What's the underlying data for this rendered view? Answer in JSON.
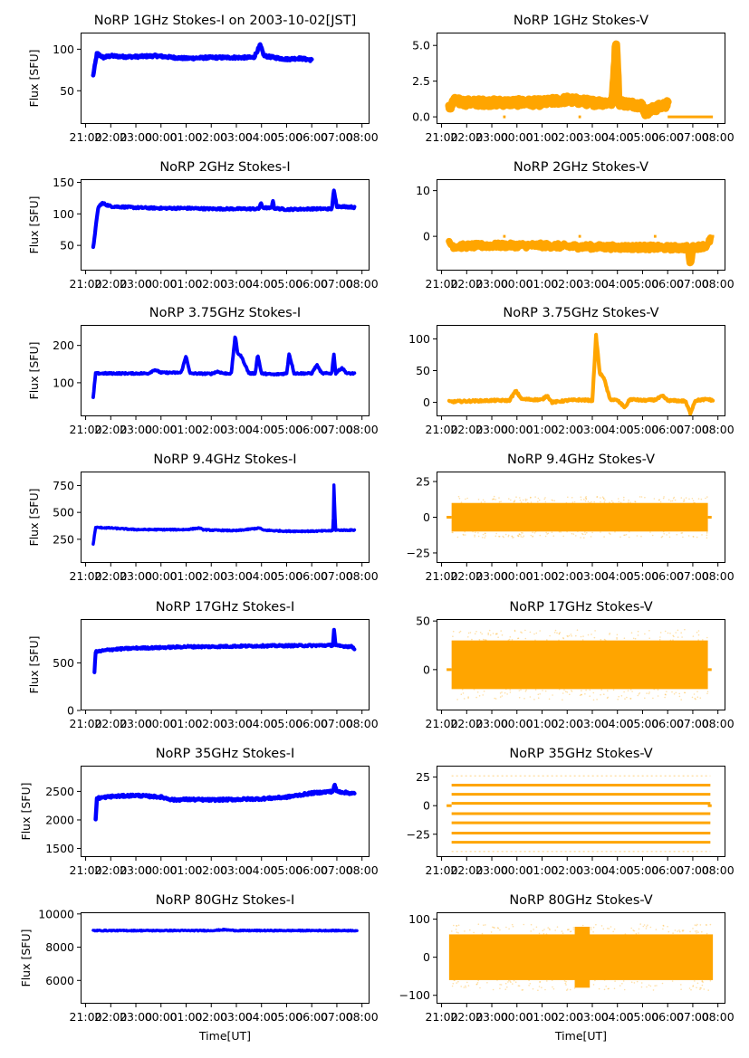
{
  "chart_data": {
    "type": "scatter",
    "figure_layout": "7 rows x 2 columns grid of time-series panels",
    "x_axis": {
      "label": "Time[UT]",
      "tick_labels": [
        "21:00",
        "22:00",
        "23:00",
        "00:00",
        "01:00",
        "02:00",
        "03:00",
        "04:00",
        "05:00",
        "06:00",
        "07:00",
        "08:00"
      ],
      "range_hours": [
        -3.2,
        8.3
      ],
      "data_span_hours": [
        -2.7,
        7.8
      ]
    },
    "colors": {
      "stokes_i": "#0000ff",
      "stokes_v": "#ffa500"
    },
    "panels": [
      {
        "id": "1ghz-i",
        "title": "NoRP 1GHz Stokes-I on 2003-10-02[JST]",
        "ylabel": "Flux [SFU]",
        "ylim": [
          10,
          120
        ],
        "yticks": [
          50,
          100
        ],
        "ytick_labels": [
          "50",
          "100"
        ],
        "color": "stokes_i",
        "series": [
          [
            -2.7,
            68
          ],
          [
            -2.55,
            95
          ],
          [
            -2.3,
            90
          ],
          [
            -2.0,
            92
          ],
          [
            -1.5,
            91
          ],
          [
            -1.0,
            91
          ],
          [
            -0.2,
            92
          ],
          [
            0.5,
            90
          ],
          [
            1.0,
            89
          ],
          [
            2.0,
            90
          ],
          [
            3.0,
            90
          ],
          [
            3.7,
            90
          ],
          [
            3.95,
            105
          ],
          [
            4.1,
            92
          ],
          [
            4.5,
            90
          ],
          [
            5.0,
            88
          ],
          [
            5.5,
            89
          ],
          [
            6.0,
            87
          ]
        ],
        "band": 3
      },
      {
        "id": "1ghz-v",
        "title": "NoRP 1GHz Stokes-V",
        "ylabel": "",
        "ylim": [
          -0.5,
          5.9
        ],
        "yticks": [
          0,
          2.5,
          5
        ],
        "ytick_labels": [
          "0.0",
          "2.5",
          "5.0"
        ],
        "color": "stokes_v",
        "series": [
          [
            -2.7,
            0.6
          ],
          [
            -2.5,
            1.1
          ],
          [
            -2.0,
            1.0
          ],
          [
            -1.0,
            1.0
          ],
          [
            0,
            1.0
          ],
          [
            1.0,
            1.0
          ],
          [
            2.0,
            1.2
          ],
          [
            3.0,
            1.0
          ],
          [
            3.8,
            1.0
          ],
          [
            3.95,
            5.3
          ],
          [
            4.05,
            1.0
          ],
          [
            4.5,
            0.9
          ],
          [
            5.0,
            0.8
          ],
          [
            5.1,
            0.3
          ],
          [
            5.5,
            0.6
          ],
          [
            6.0,
            0.9
          ]
        ],
        "band": 0.5,
        "flat_segments": [
          [
            6.0,
            7.8,
            0
          ],
          [
            -0.55,
            -0.45,
            0
          ],
          [
            2.45,
            2.55,
            0
          ]
        ]
      },
      {
        "id": "2ghz-i",
        "title": "NoRP 2GHz Stokes-I",
        "ylabel": "Flux [SFU]",
        "ylim": [
          10,
          155
        ],
        "yticks": [
          50,
          100,
          150
        ],
        "ytick_labels": [
          "50",
          "100",
          "150"
        ],
        "color": "stokes_i",
        "series": [
          [
            -2.7,
            46
          ],
          [
            -2.5,
            110
          ],
          [
            -2.35,
            117
          ],
          [
            -2.0,
            112
          ],
          [
            -1.0,
            110
          ],
          [
            0,
            109
          ],
          [
            1.0,
            109
          ],
          [
            2.0,
            108
          ],
          [
            3.0,
            108
          ],
          [
            3.9,
            108
          ],
          [
            3.97,
            117
          ],
          [
            4.05,
            110
          ],
          [
            4.4,
            109
          ],
          [
            4.45,
            123
          ],
          [
            4.5,
            109
          ],
          [
            5.0,
            107
          ],
          [
            6.0,
            108
          ],
          [
            6.8,
            108
          ],
          [
            6.88,
            137
          ],
          [
            7.0,
            112
          ],
          [
            7.6,
            111
          ],
          [
            7.7,
            110
          ]
        ],
        "band": 3
      },
      {
        "id": "2ghz-v",
        "title": "NoRP 2GHz Stokes-V",
        "ylabel": "",
        "ylim": [
          -7.5,
          12.5
        ],
        "yticks": [
          0,
          10
        ],
        "ytick_labels": [
          "0",
          "10"
        ],
        "color": "stokes_v",
        "series": [
          [
            -2.7,
            -1.5
          ],
          [
            -2.5,
            -2.2
          ],
          [
            -1.0,
            -2.0
          ],
          [
            0,
            -2.0
          ],
          [
            1.0,
            -2.0
          ],
          [
            2.0,
            -2.2
          ],
          [
            3.0,
            -2.3
          ],
          [
            4.0,
            -2.4
          ],
          [
            5.0,
            -2.4
          ],
          [
            6.0,
            -2.5
          ],
          [
            6.8,
            -2.5
          ],
          [
            6.9,
            -6.5
          ],
          [
            7.0,
            -2.5
          ],
          [
            7.6,
            -2.0
          ],
          [
            7.7,
            -0.5
          ]
        ],
        "band": 1.2,
        "flat_segments": [
          [
            7.7,
            7.85,
            0
          ],
          [
            -0.55,
            -0.45,
            0
          ],
          [
            2.45,
            2.55,
            0
          ],
          [
            5.45,
            5.55,
            0
          ]
        ]
      },
      {
        "id": "3.75ghz-i",
        "title": "NoRP 3.75GHz Stokes-I",
        "ylabel": "Flux [SFU]",
        "ylim": [
          10,
          255
        ],
        "yticks": [
          100,
          200
        ],
        "ytick_labels": [
          "100",
          "200"
        ],
        "color": "stokes_i",
        "series": [
          [
            -2.7,
            60
          ],
          [
            -2.6,
            125
          ],
          [
            -1.0,
            125
          ],
          [
            -0.5,
            125
          ],
          [
            -0.25,
            135
          ],
          [
            0,
            127
          ],
          [
            0.8,
            127
          ],
          [
            1.0,
            172
          ],
          [
            1.15,
            125
          ],
          [
            2.0,
            124
          ],
          [
            2.25,
            130
          ],
          [
            2.5,
            125
          ],
          [
            2.8,
            125
          ],
          [
            2.95,
            225
          ],
          [
            3.05,
            180
          ],
          [
            3.2,
            170
          ],
          [
            3.5,
            125
          ],
          [
            3.75,
            125
          ],
          [
            3.85,
            175
          ],
          [
            4.0,
            125
          ],
          [
            4.5,
            122
          ],
          [
            5.0,
            125
          ],
          [
            5.1,
            178
          ],
          [
            5.3,
            125
          ],
          [
            6.0,
            125
          ],
          [
            6.2,
            148
          ],
          [
            6.4,
            125
          ],
          [
            6.8,
            125
          ],
          [
            6.88,
            180
          ],
          [
            6.95,
            125
          ],
          [
            7.2,
            140
          ],
          [
            7.4,
            125
          ],
          [
            7.7,
            125
          ]
        ],
        "band": 4
      },
      {
        "id": "3.75ghz-v",
        "title": "NoRP 3.75GHz Stokes-V",
        "ylabel": "",
        "ylim": [
          -22,
          122
        ],
        "yticks": [
          0,
          50,
          100
        ],
        "ytick_labels": [
          "0",
          "50",
          "100"
        ],
        "color": "stokes_v",
        "series": [
          [
            -2.7,
            1
          ],
          [
            -1.0,
            3
          ],
          [
            -0.3,
            3
          ],
          [
            -0.05,
            18
          ],
          [
            0.2,
            5
          ],
          [
            1.0,
            4
          ],
          [
            1.2,
            11
          ],
          [
            1.4,
            0
          ],
          [
            2.0,
            3
          ],
          [
            2.5,
            4
          ],
          [
            3.0,
            3
          ],
          [
            3.15,
            105
          ],
          [
            3.3,
            45
          ],
          [
            3.45,
            40
          ],
          [
            3.7,
            5
          ],
          [
            4.0,
            3
          ],
          [
            4.3,
            -8
          ],
          [
            4.5,
            5
          ],
          [
            5.0,
            3
          ],
          [
            5.5,
            4
          ],
          [
            5.8,
            10
          ],
          [
            6.0,
            3
          ],
          [
            6.7,
            2
          ],
          [
            6.9,
            -17
          ],
          [
            7.1,
            3
          ],
          [
            7.6,
            5
          ],
          [
            7.8,
            3
          ]
        ],
        "band": 3
      },
      {
        "id": "9.4ghz-i",
        "title": "NoRP 9.4GHz Stokes-I",
        "ylabel": "Flux [SFU]",
        "ylim": [
          30,
          880
        ],
        "yticks": [
          250,
          500,
          750
        ],
        "ytick_labels": [
          "250",
          "500",
          "750"
        ],
        "color": "stokes_i",
        "series": [
          [
            -2.7,
            205
          ],
          [
            -2.6,
            360
          ],
          [
            -2.0,
            355
          ],
          [
            -1.0,
            340
          ],
          [
            0,
            340
          ],
          [
            1.0,
            340
          ],
          [
            1.55,
            355
          ],
          [
            1.65,
            340
          ],
          [
            2.0,
            335
          ],
          [
            3.0,
            330
          ],
          [
            3.95,
            355
          ],
          [
            4.05,
            335
          ],
          [
            5.0,
            325
          ],
          [
            6.0,
            325
          ],
          [
            6.85,
            330
          ],
          [
            6.88,
            770
          ],
          [
            6.95,
            335
          ],
          [
            7.7,
            335
          ]
        ],
        "band": 10
      },
      {
        "id": "9.4ghz-v",
        "title": "NoRP 9.4GHz Stokes-V",
        "ylabel": "",
        "ylim": [
          -32,
          32
        ],
        "yticks": [
          -25,
          0,
          25
        ],
        "ytick_labels": [
          "−25",
          "0",
          "25"
        ],
        "color": "stokes_v",
        "noise_band": {
          "from": -2.6,
          "to": 7.6,
          "amp": 10
        },
        "flat_segments": [
          [
            -2.8,
            -2.6,
            0
          ],
          [
            7.6,
            7.75,
            0
          ]
        ]
      },
      {
        "id": "17ghz-i",
        "title": "NoRP 17GHz Stokes-I",
        "ylabel": "Flux [SFU]",
        "ylim": [
          0,
          960
        ],
        "yticks": [
          0,
          500
        ],
        "ytick_labels": [
          "0",
          "500"
        ],
        "color": "stokes_i",
        "series": [
          [
            -2.65,
            410
          ],
          [
            -2.6,
            615
          ],
          [
            -2.0,
            640
          ],
          [
            -1.0,
            655
          ],
          [
            0,
            660
          ],
          [
            1.0,
            670
          ],
          [
            2.0,
            670
          ],
          [
            3.0,
            675
          ],
          [
            4.0,
            678
          ],
          [
            5.0,
            680
          ],
          [
            6.0,
            682
          ],
          [
            6.85,
            685
          ],
          [
            6.88,
            870
          ],
          [
            6.95,
            680
          ],
          [
            7.6,
            670
          ],
          [
            7.7,
            650
          ]
        ],
        "band": 20
      },
      {
        "id": "17ghz-v",
        "title": "NoRP 17GHz Stokes-V",
        "ylabel": "",
        "ylim": [
          -42,
          52
        ],
        "yticks": [
          0,
          50
        ],
        "ytick_labels": [
          "0",
          "50"
        ],
        "color": "stokes_v",
        "noise_band": {
          "from": -2.6,
          "to": 7.6,
          "amp": 25,
          "offset": 5
        },
        "flat_segments": [
          [
            -2.8,
            -2.6,
            0
          ],
          [
            7.6,
            7.75,
            0
          ]
        ]
      },
      {
        "id": "35ghz-i",
        "title": "NoRP 35GHz Stokes-I",
        "ylabel": "Flux [SFU]",
        "ylim": [
          1350,
          2950
        ],
        "yticks": [
          1500,
          2000,
          2500
        ],
        "ytick_labels": [
          "1500",
          "2000",
          "2500"
        ],
        "color": "stokes_i",
        "series": [
          [
            -2.6,
            2020
          ],
          [
            -2.55,
            2380
          ],
          [
            -2.0,
            2410
          ],
          [
            -1.0,
            2430
          ],
          [
            0,
            2400
          ],
          [
            0.5,
            2350
          ],
          [
            1.0,
            2360
          ],
          [
            2.0,
            2350
          ],
          [
            3.0,
            2360
          ],
          [
            4.0,
            2370
          ],
          [
            5.0,
            2400
          ],
          [
            6.0,
            2470
          ],
          [
            6.85,
            2500
          ],
          [
            6.9,
            2620
          ],
          [
            7.0,
            2500
          ],
          [
            7.7,
            2460
          ]
        ],
        "band": 40
      },
      {
        "id": "35ghz-v",
        "title": "NoRP 35GHz Stokes-V",
        "ylabel": "",
        "ylim": [
          -45,
          35
        ],
        "yticks": [
          -25,
          0,
          25
        ],
        "ytick_labels": [
          "−25",
          "0",
          "25"
        ],
        "color": "stokes_v",
        "levels": [
          -40,
          -32,
          -24,
          -15,
          -7,
          2,
          10,
          18,
          26
        ],
        "level_span": [
          -2.6,
          7.7
        ],
        "flat_segments": [
          [
            -2.8,
            -2.6,
            0
          ],
          [
            7.6,
            7.75,
            0
          ]
        ]
      },
      {
        "id": "80ghz-i",
        "title": "NoRP 80GHz Stokes-I",
        "ylabel": "Flux [SFU]",
        "ylim": [
          4600,
          10100
        ],
        "yticks": [
          6000,
          8000,
          10000
        ],
        "ytick_labels": [
          "6000",
          "8000",
          "10000"
        ],
        "color": "stokes_i",
        "series": [
          [
            -2.7,
            9000
          ],
          [
            -1.0,
            9000
          ],
          [
            2.0,
            9000
          ],
          [
            2.5,
            9050
          ],
          [
            3.0,
            9000
          ],
          [
            5.0,
            9000
          ],
          [
            7.8,
            9000
          ]
        ],
        "band": 60
      },
      {
        "id": "80ghz-v",
        "title": "NoRP 80GHz Stokes-V",
        "ylabel": "",
        "ylim": [
          -122,
          118
        ],
        "yticks": [
          -100,
          0,
          100
        ],
        "ytick_labels": [
          "−100",
          "0",
          "100"
        ],
        "color": "stokes_v",
        "noise_band": {
          "from": -2.7,
          "to": 7.8,
          "amp": 60,
          "bump": [
            2.3,
            2.9,
            80
          ]
        }
      }
    ]
  }
}
